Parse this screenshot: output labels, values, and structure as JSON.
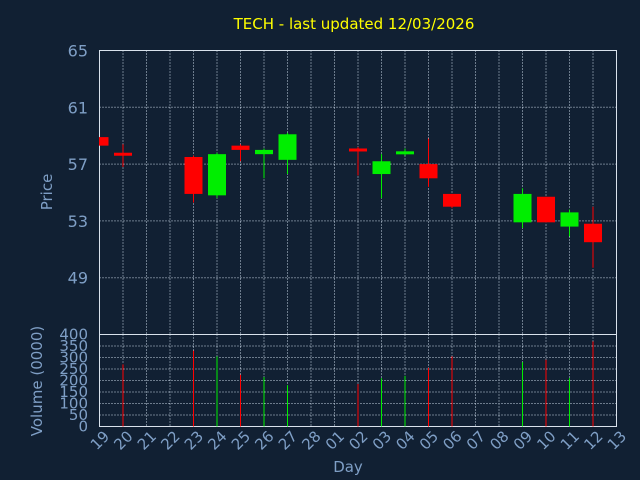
{
  "chart_data": {
    "type": "candlestick",
    "title": "TECH - last updated 12/03/2026",
    "x_label": "Day",
    "categories": [
      "19",
      "20",
      "21",
      "22",
      "23",
      "24",
      "25",
      "26",
      "27",
      "28",
      "01",
      "02",
      "03",
      "04",
      "05",
      "06",
      "07",
      "08",
      "09",
      "10",
      "11",
      "12",
      "13"
    ],
    "price_panel": {
      "y_label": "Price",
      "ylim": [
        45,
        65
      ],
      "y_ticks": [
        49,
        53,
        57,
        61,
        65
      ],
      "grid": true
    },
    "volume_panel": {
      "y_label": "Volume (0000)",
      "ylim": [
        0,
        400
      ],
      "y_ticks": [
        0,
        50,
        100,
        150,
        200,
        250,
        300,
        350,
        400
      ],
      "grid": true
    },
    "candles": [
      {
        "day": "19",
        "open": 58.9,
        "close": 58.3,
        "high": 58.9,
        "low": 58.3
      },
      {
        "day": "20",
        "open": 57.8,
        "close": 57.6,
        "high": 58.4,
        "low": 56.8
      },
      {
        "day": "23",
        "open": 57.5,
        "close": 54.9,
        "high": 57.6,
        "low": 54.3
      },
      {
        "day": "24",
        "open": 54.8,
        "close": 57.7,
        "high": 57.8,
        "low": 54.6
      },
      {
        "day": "25",
        "open": 58.3,
        "close": 58.0,
        "high": 58.4,
        "low": 57.2
      },
      {
        "day": "26",
        "open": 57.7,
        "close": 58.0,
        "high": 58.1,
        "low": 56.0
      },
      {
        "day": "27",
        "open": 57.3,
        "close": 59.1,
        "high": 59.2,
        "low": 56.3
      },
      {
        "day": "02",
        "open": 58.1,
        "close": 57.9,
        "high": 58.2,
        "low": 56.2
      },
      {
        "day": "03",
        "open": 56.3,
        "close": 57.2,
        "high": 57.7,
        "low": 54.6
      },
      {
        "day": "04",
        "open": 57.8,
        "close": 57.9,
        "high": 58.1,
        "low": 57.6
      },
      {
        "day": "05",
        "open": 57.0,
        "close": 56.0,
        "high": 58.8,
        "low": 55.4
      },
      {
        "day": "06",
        "open": 54.9,
        "close": 54.0,
        "high": 54.9,
        "low": 53.9
      },
      {
        "day": "09",
        "open": 52.9,
        "close": 54.9,
        "high": 55.3,
        "low": 52.5
      },
      {
        "day": "10",
        "open": 54.7,
        "close": 52.9,
        "high": 54.7,
        "low": 52.9
      },
      {
        "day": "11",
        "open": 52.6,
        "close": 53.6,
        "high": 53.8,
        "low": 51.9
      },
      {
        "day": "12",
        "open": 52.8,
        "close": 51.5,
        "high": 54.0,
        "low": 49.7
      }
    ],
    "volumes": [
      {
        "day": "20",
        "value": 270,
        "direction": "down"
      },
      {
        "day": "23",
        "value": 330,
        "direction": "down"
      },
      {
        "day": "24",
        "value": 305,
        "direction": "up"
      },
      {
        "day": "25",
        "value": 225,
        "direction": "down"
      },
      {
        "day": "26",
        "value": 215,
        "direction": "up"
      },
      {
        "day": "27",
        "value": 180,
        "direction": "up"
      },
      {
        "day": "02",
        "value": 185,
        "direction": "down"
      },
      {
        "day": "03",
        "value": 210,
        "direction": "up"
      },
      {
        "day": "04",
        "value": 220,
        "direction": "up"
      },
      {
        "day": "05",
        "value": 255,
        "direction": "down"
      },
      {
        "day": "06",
        "value": 305,
        "direction": "down"
      },
      {
        "day": "09",
        "value": 280,
        "direction": "up"
      },
      {
        "day": "10",
        "value": 290,
        "direction": "down"
      },
      {
        "day": "11",
        "value": 210,
        "direction": "up"
      },
      {
        "day": "12",
        "value": 370,
        "direction": "down"
      }
    ],
    "colors": {
      "up": "#00ee00",
      "down": "#ff0000",
      "background": "#112033",
      "title": "#ffff00",
      "axis_text": "#7f9fc6"
    }
  }
}
